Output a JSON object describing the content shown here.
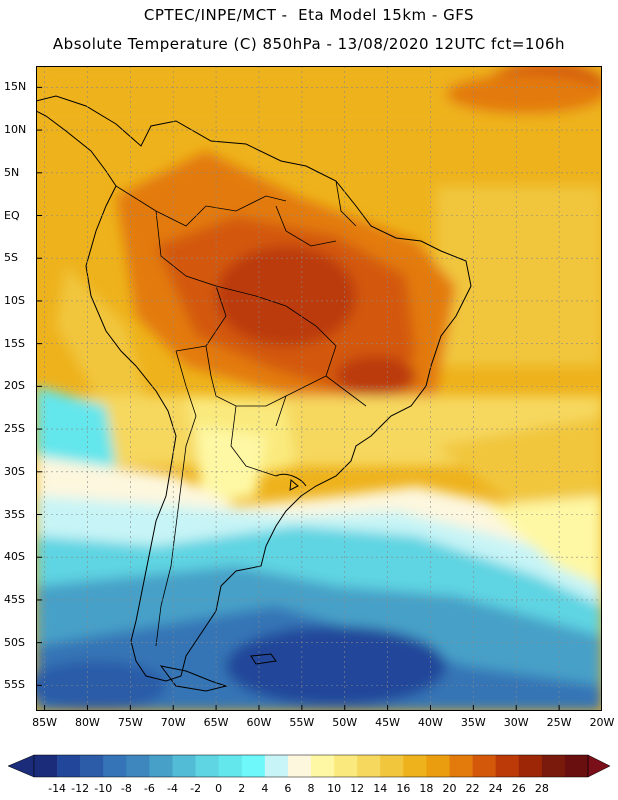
{
  "header": {
    "line1": "CPTEC/INPE/MCT -  Eta Model 15km - GFS",
    "line2": "Absolute Temperature (C) 850hPa - 13/08/2020 12UTC fct=106h"
  },
  "map": {
    "lat_ticks": [
      "15N",
      "10N",
      "5N",
      "EQ",
      "5S",
      "10S",
      "15S",
      "20S",
      "25S",
      "30S",
      "35S",
      "40S",
      "45S",
      "50S",
      "55S"
    ],
    "lon_ticks": [
      "85W",
      "80W",
      "75W",
      "70W",
      "65W",
      "60W",
      "55W",
      "50W",
      "45W",
      "40W",
      "35W",
      "30W",
      "25W",
      "20W"
    ],
    "lat_range": [
      17.5,
      -58
    ],
    "lon_range": [
      -86,
      -20
    ],
    "field": "temperature_850hPa"
  },
  "colorbar": {
    "labels": [
      "-14",
      "-12",
      "-10",
      "-8",
      "-6",
      "-4",
      "-2",
      "0",
      "2",
      "4",
      "6",
      "8",
      "10",
      "12",
      "14",
      "16",
      "18",
      "20",
      "22",
      "24",
      "26",
      "28"
    ],
    "colors": [
      "#1a2c7a",
      "#22479a",
      "#2c5ca8",
      "#3574b6",
      "#3d86be",
      "#47a0c8",
      "#52bcd6",
      "#5fd4e2",
      "#63e6ec",
      "#6ef8fa",
      "#c7f4f6",
      "#fdf7de",
      "#fef8a4",
      "#faea7e",
      "#f6d85e",
      "#f1c63c",
      "#eeb21c",
      "#eb9d10",
      "#e37a0c",
      "#d3580a",
      "#bb3a08",
      "#9c2606",
      "#7a1a0c",
      "#6a0f10"
    ],
    "under_color": "#1a2c7a",
    "over_color": "#7a0f1a"
  }
}
